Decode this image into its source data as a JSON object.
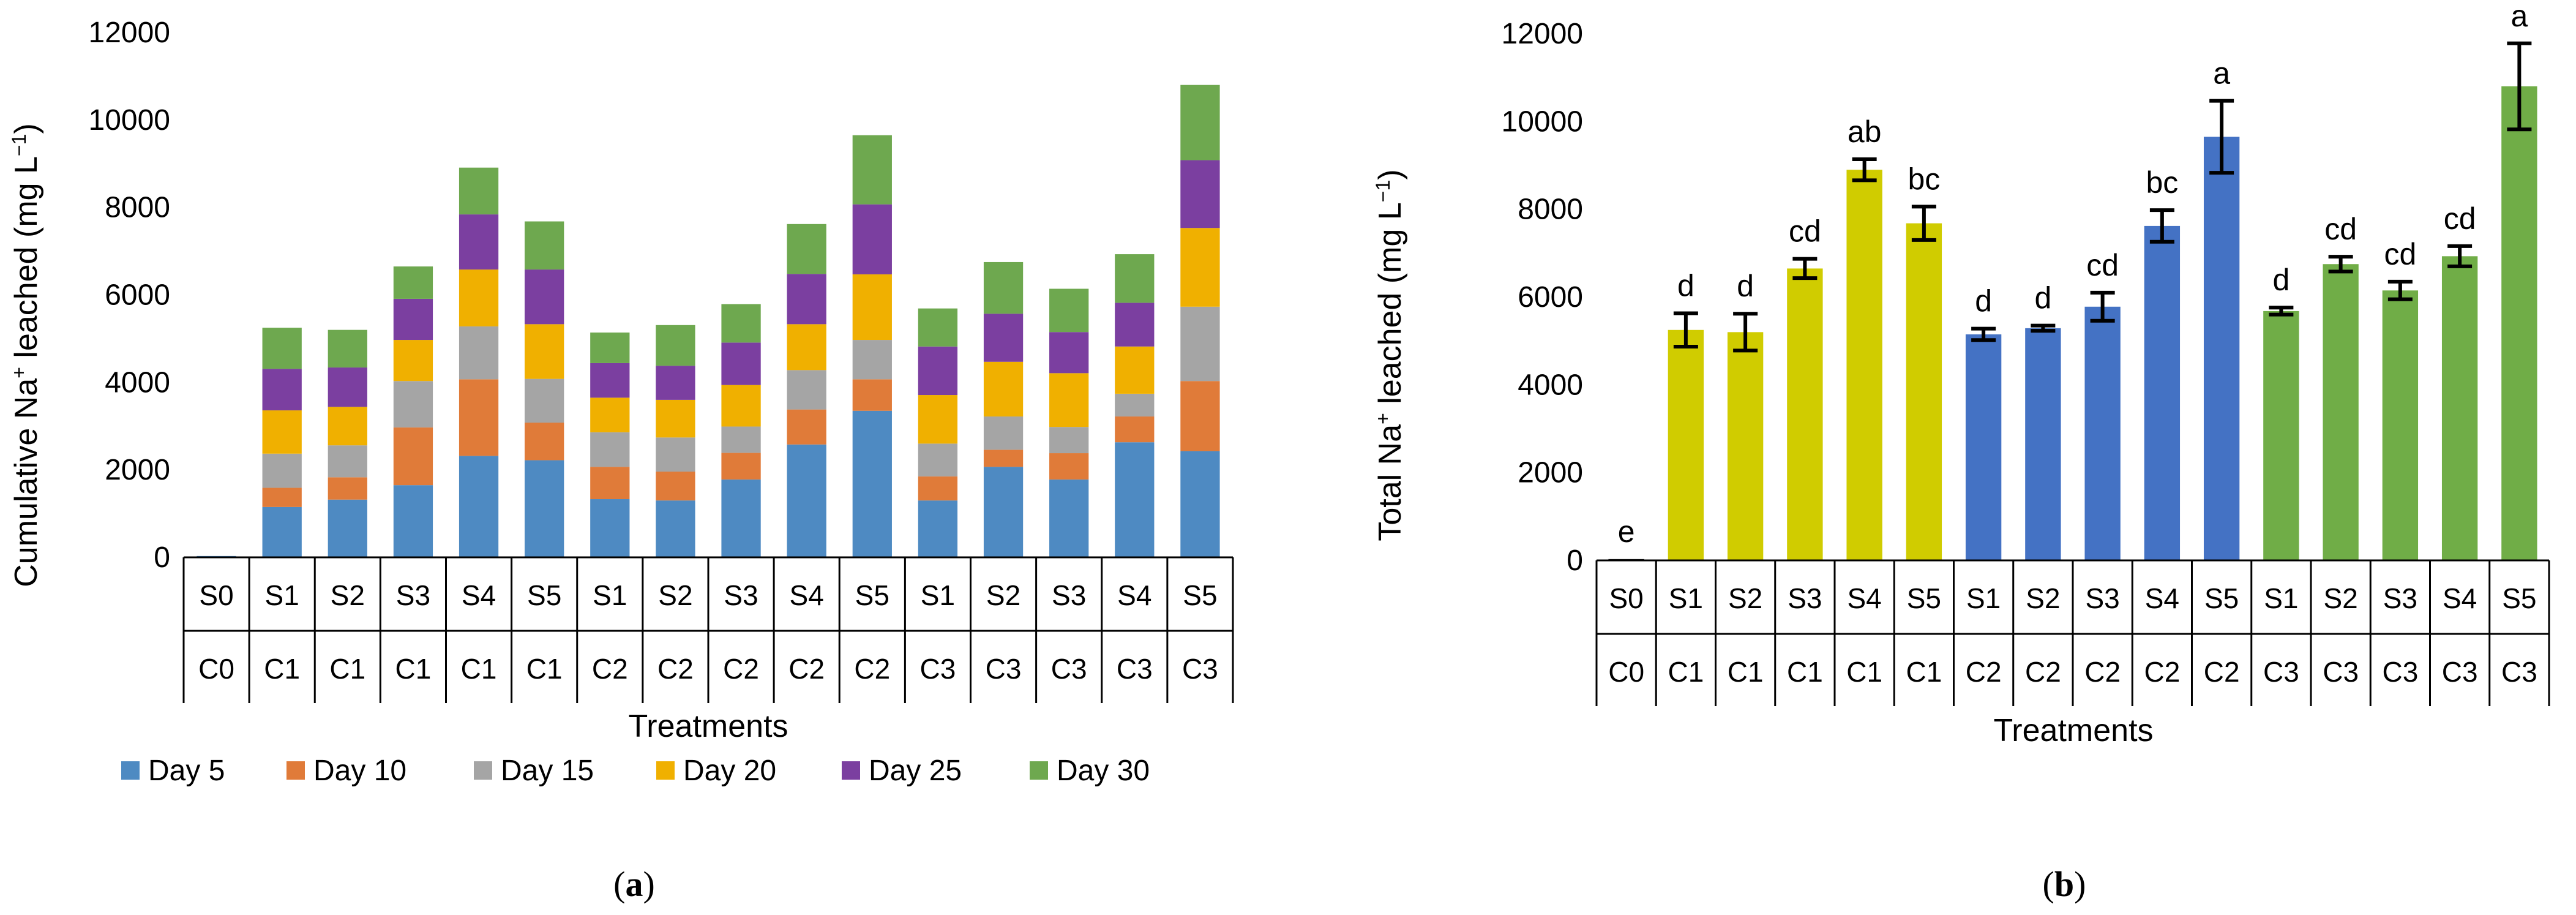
{
  "chart_data": [
    {
      "type": "bar",
      "stacked": true,
      "panel_label": "(a)",
      "panel_letter": "a",
      "categories": [
        "S0/C0",
        "S1/C1",
        "S2/C1",
        "S3/C1",
        "S4/C1",
        "S5/C1",
        "S1/C2",
        "S2/C2",
        "S3/C2",
        "S4/C2",
        "S5/C2",
        "S1/C3",
        "S2/C3",
        "S3/C3",
        "S4/C3",
        "S5/C3"
      ],
      "top_labels": [
        "S0",
        "S1",
        "S2",
        "S3",
        "S4",
        "S5",
        "S1",
        "S2",
        "S3",
        "S4",
        "S5",
        "S1",
        "S2",
        "S3",
        "S4",
        "S5"
      ],
      "bottom_labels": [
        "C0",
        "C1",
        "C1",
        "C1",
        "C1",
        "C1",
        "C2",
        "C2",
        "C2",
        "C2",
        "C2",
        "C3",
        "C3",
        "C3",
        "C3",
        "C3"
      ],
      "series": [
        {
          "name": "Day 5",
          "color": "#4e8ac2",
          "values": [
            30,
            1150,
            1320,
            1650,
            2320,
            2220,
            1330,
            1300,
            1780,
            2580,
            3350,
            1300,
            2070,
            1780,
            2630,
            2430
          ]
        },
        {
          "name": "Day 10",
          "color": "#e07b39",
          "values": [
            0,
            440,
            510,
            1320,
            1750,
            860,
            740,
            660,
            610,
            800,
            720,
            550,
            390,
            600,
            590,
            1600
          ]
        },
        {
          "name": "Day 15",
          "color": "#a5a5a5",
          "values": [
            0,
            780,
            730,
            1060,
            1210,
            1000,
            790,
            780,
            600,
            900,
            900,
            750,
            760,
            600,
            520,
            1700
          ]
        },
        {
          "name": "Day 20",
          "color": "#f0b000",
          "values": [
            0,
            990,
            880,
            940,
            1300,
            1250,
            790,
            860,
            950,
            1050,
            1500,
            1110,
            1250,
            1230,
            1080,
            1800
          ]
        },
        {
          "name": "Day 25",
          "color": "#7b3fa0",
          "values": [
            0,
            950,
            900,
            940,
            1260,
            1250,
            790,
            780,
            970,
            1150,
            1600,
            1110,
            1100,
            940,
            1000,
            1550
          ]
        },
        {
          "name": "Day 30",
          "color": "#6ea84f",
          "values": [
            0,
            940,
            860,
            740,
            1070,
            1100,
            700,
            930,
            880,
            1140,
            1580,
            870,
            1180,
            990,
            1110,
            1720
          ]
        }
      ],
      "title": "",
      "xlabel": "Treatments",
      "ylabel_pre": "Cumulative Na",
      "ylabel_sup": "+",
      "ylabel_mid": " leached (mg L",
      "ylabel_sup2": "−1",
      "ylabel_post": ")",
      "ylim": [
        0,
        12000
      ],
      "yticks": [
        "0",
        "2000",
        "4000",
        "6000",
        "8000",
        "10000",
        "12000"
      ],
      "legend": "bottom"
    },
    {
      "type": "bar",
      "stacked": false,
      "panel_label": "(b)",
      "panel_letter": "b",
      "categories": [
        "S0/C0",
        "S1/C1",
        "S2/C1",
        "S3/C1",
        "S4/C1",
        "S5/C1",
        "S1/C2",
        "S2/C2",
        "S3/C2",
        "S4/C2",
        "S5/C2",
        "S1/C3",
        "S2/C3",
        "S3/C3",
        "S4/C3",
        "S5/C3"
      ],
      "top_labels": [
        "S0",
        "S1",
        "S2",
        "S3",
        "S4",
        "S5",
        "S1",
        "S2",
        "S3",
        "S4",
        "S5",
        "S1",
        "S2",
        "S3",
        "S4",
        "S5"
      ],
      "bottom_labels": [
        "C0",
        "C1",
        "C1",
        "C1",
        "C1",
        "C1",
        "C2",
        "C2",
        "C2",
        "C2",
        "C2",
        "C3",
        "C3",
        "C3",
        "C3",
        "C3"
      ],
      "values": [
        30,
        5250,
        5200,
        6650,
        8900,
        7680,
        5150,
        5290,
        5780,
        7620,
        9650,
        5680,
        6750,
        6150,
        6930,
        10800
      ],
      "errors": [
        0,
        380,
        420,
        220,
        240,
        380,
        130,
        60,
        320,
        360,
        820,
        80,
        170,
        200,
        230,
        980
      ],
      "colors": [
        "#1a1a1a",
        "#d0cc00",
        "#d0cc00",
        "#d0cc00",
        "#d0cc00",
        "#d0cc00",
        "#4472c4",
        "#4472c4",
        "#4472c4",
        "#4472c4",
        "#4472c4",
        "#70ad47",
        "#70ad47",
        "#70ad47",
        "#70ad47",
        "#70ad47"
      ],
      "letters": [
        "e",
        "d",
        "d",
        "cd",
        "ab",
        "bc",
        "d",
        "d",
        "cd",
        "bc",
        "a",
        "d",
        "cd",
        "cd",
        "cd",
        "a"
      ],
      "title": "",
      "xlabel": "Treatments",
      "ylabel_pre": "Total Na",
      "ylabel_sup": "+",
      "ylabel_mid": " leached (mg L",
      "ylabel_sup2": "−1",
      "ylabel_post": ")",
      "ylim": [
        0,
        12000
      ],
      "yticks": [
        "0",
        "2000",
        "4000",
        "6000",
        "8000",
        "10000",
        "12000"
      ]
    }
  ]
}
